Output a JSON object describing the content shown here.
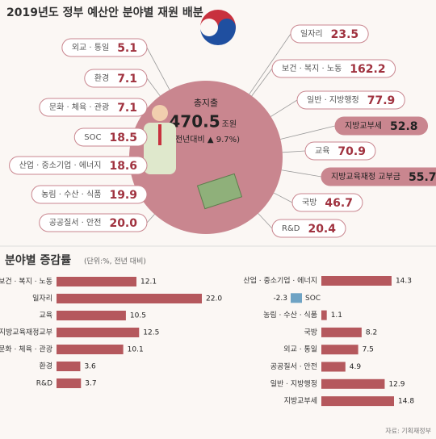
{
  "source": "자료: 기획재정부",
  "chart_data": [
    {
      "type": "callout",
      "title": "2019년도 정부 예산안 분야별 재원 배분",
      "center_label": "총지출",
      "total": 470.5,
      "unit": "조원",
      "change_note": "(전년대비 ▲ 9.7%)",
      "color": "#c9868f",
      "categories": [
        "외교 · 통일",
        "환경",
        "문화 · 체육 · 관광",
        "SOC",
        "산업 · 중소기업 · 에너지",
        "농림 · 수산 · 식품",
        "공공질서 · 안전",
        "일자리",
        "보건 · 복지 · 노동",
        "일반 · 지방행정",
        "지방교부세",
        "교육",
        "지방교육재정 교부금",
        "국방",
        "R&D"
      ],
      "values": [
        5.1,
        7.1,
        7.1,
        18.5,
        18.6,
        19.9,
        20.0,
        23.5,
        162.2,
        77.9,
        52.8,
        70.9,
        55.7,
        46.7,
        20.4
      ],
      "value_labels": [
        "5.1",
        "7.1",
        "7.1",
        "18.5",
        "18.6",
        "19.9",
        "20.0",
        "23.5",
        "162.2",
        "77.9",
        "52.8",
        "70.9",
        "55.7",
        "46.7",
        "20.4"
      ]
    },
    {
      "type": "bar",
      "title": "분야별 증감률",
      "subtitle": "(단위:%, 전년 대비)",
      "color": "#b5585d",
      "categories": [
        "보건 · 복지 · 노동",
        "일자리",
        "교육",
        "지방교육재정교부",
        "문화 · 체육 · 관광",
        "환경",
        "R&D"
      ],
      "values": [
        12.1,
        22.0,
        10.5,
        12.5,
        10.1,
        3.6,
        3.7
      ],
      "value_labels": [
        "12.1",
        "22.0",
        "10.5",
        "12.5",
        "10.1",
        "3.6",
        "3.7"
      ]
    },
    {
      "type": "bar",
      "color": "#b5585d",
      "negative_color": "#6fa3c4",
      "categories": [
        "산업 · 중소기업 · 에너지",
        "SOC",
        "농림 · 수산 · 식품",
        "국방",
        "외교 · 통일",
        "공공질서 · 안전",
        "일반 · 지방행정",
        "지방교부세"
      ],
      "values": [
        14.3,
        -2.3,
        1.1,
        8.2,
        7.5,
        4.9,
        12.9,
        14.8
      ]
    }
  ]
}
